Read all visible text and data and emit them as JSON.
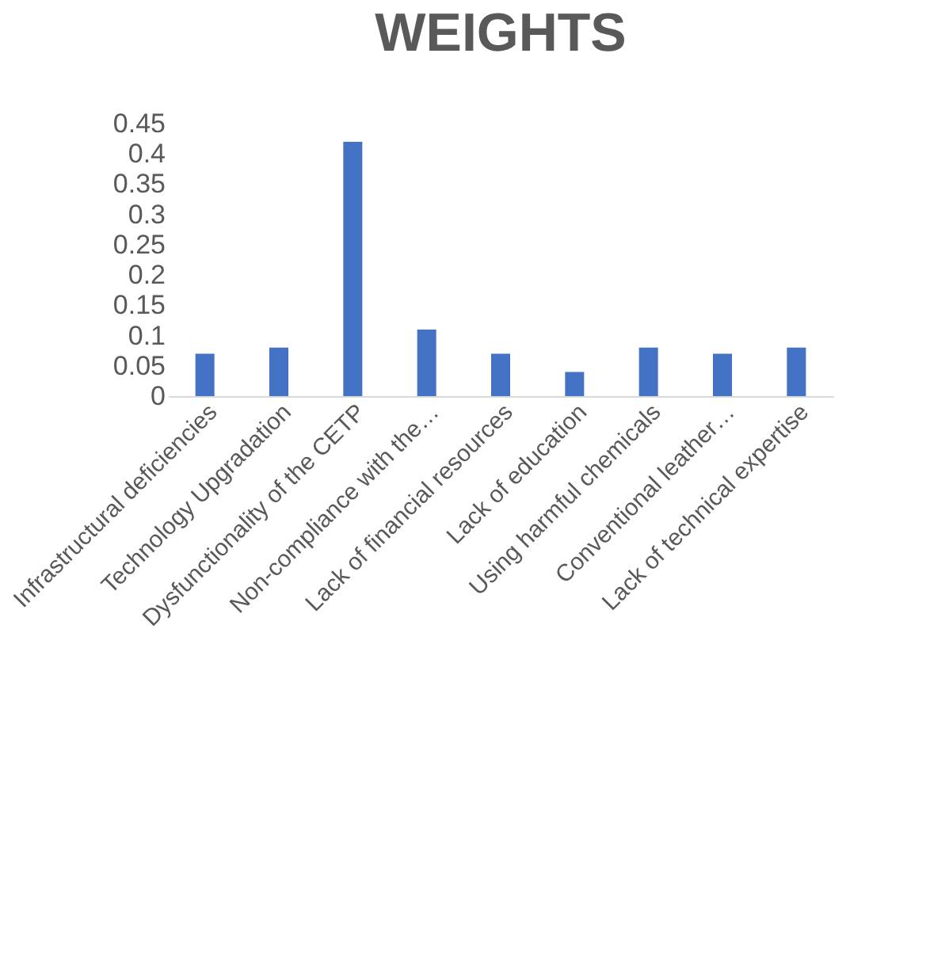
{
  "chart_data": {
    "type": "bar",
    "title": "WEIGHTS",
    "categories": [
      "Infrastructural deficiencies",
      "Technology Upgradation",
      "Dysfunctionality of the CETP",
      "Non-compliance with the…",
      "Lack of financial resources",
      "Lack of education",
      "Using harmful chemicals",
      "Conventional leather…",
      "Lack of technical expertise"
    ],
    "values": [
      0.07,
      0.08,
      0.42,
      0.11,
      0.07,
      0.04,
      0.08,
      0.07,
      0.08
    ],
    "color": "#4472c4",
    "ylim": [
      0,
      0.45
    ],
    "yticks": [
      0,
      0.05,
      0.1,
      0.15,
      0.2,
      0.25,
      0.3,
      0.35,
      0.4,
      0.45
    ],
    "grid": false
  }
}
